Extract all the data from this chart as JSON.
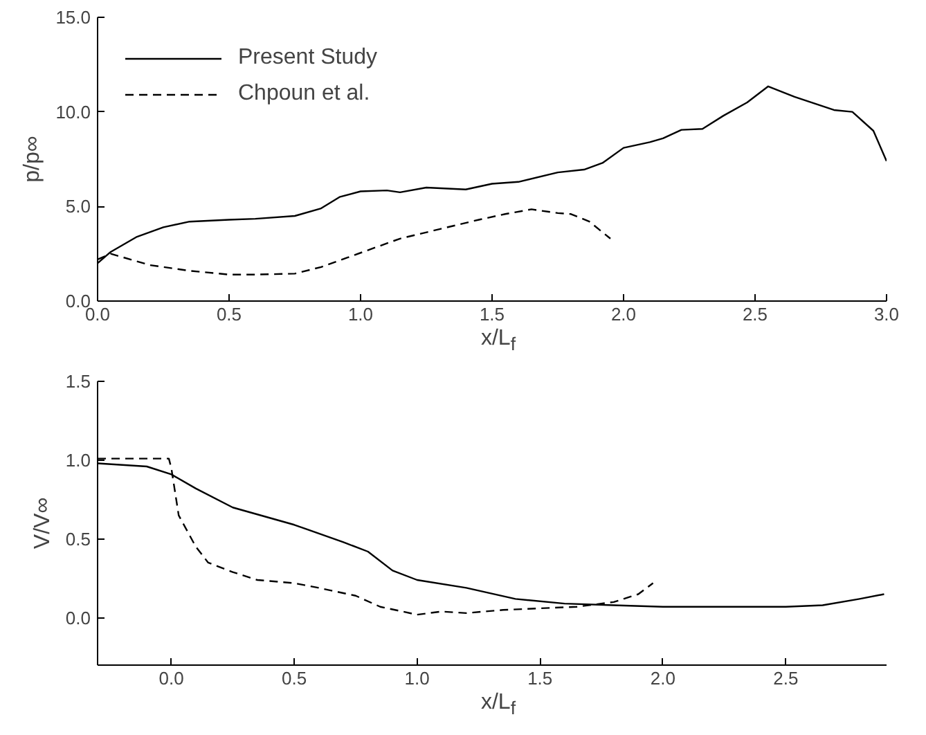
{
  "chart_data": [
    {
      "type": "line",
      "xlabel": "x/L$_{f}$",
      "ylabel": "p/p∞",
      "xlim": [
        0,
        3
      ],
      "ylim": [
        0,
        15
      ],
      "xticks": [
        {
          "value": 0,
          "label": "0.0"
        },
        {
          "value": 0.5,
          "label": "0.5"
        },
        {
          "value": 1,
          "label": "1.0"
        },
        {
          "value": 1.5,
          "label": "1.5"
        },
        {
          "value": 2,
          "label": "2.0"
        },
        {
          "value": 2.5,
          "label": "2.5"
        },
        {
          "value": 3,
          "label": "3.0"
        }
      ],
      "yticks": [
        {
          "value": 0,
          "label": "0.0"
        },
        {
          "value": 5,
          "label": "5.0"
        },
        {
          "value": 10,
          "label": "10.0"
        },
        {
          "value": 15,
          "label": "15.0"
        }
      ],
      "grid": false,
      "legend": "top left",
      "series": [
        {
          "name": "Present Study",
          "color": "#000000",
          "line_style": "solid",
          "x": [
            0,
            0.05,
            0.15,
            0.25,
            0.35,
            0.5,
            0.6,
            0.75,
            0.85,
            0.92,
            1.0,
            1.1,
            1.15,
            1.25,
            1.4,
            1.5,
            1.6,
            1.75,
            1.85,
            1.92,
            2.0,
            2.1,
            2.15,
            2.22,
            2.3,
            2.38,
            2.47,
            2.55,
            2.65,
            2.8,
            2.87,
            2.95,
            3.0
          ],
          "values": [
            2.0,
            2.6,
            3.4,
            3.9,
            4.2,
            4.3,
            4.35,
            4.5,
            4.9,
            5.5,
            5.8,
            5.85,
            5.75,
            6.0,
            5.9,
            6.2,
            6.3,
            6.8,
            6.95,
            7.3,
            8.1,
            8.4,
            8.6,
            9.05,
            9.1,
            9.8,
            10.5,
            11.35,
            10.8,
            10.1,
            10.0,
            9.0,
            7.4
          ]
        },
        {
          "name": "Chpoun et al.",
          "color": "#000000",
          "line_style": "dashed",
          "x": [
            0,
            0.05,
            0.2,
            0.35,
            0.5,
            0.6,
            0.75,
            0.85,
            0.95,
            1.05,
            1.15,
            1.3,
            1.45,
            1.55,
            1.65,
            1.75,
            1.8,
            1.87,
            1.95
          ],
          "values": [
            2.2,
            2.5,
            1.9,
            1.6,
            1.4,
            1.4,
            1.45,
            1.8,
            2.3,
            2.8,
            3.3,
            3.8,
            4.3,
            4.6,
            4.85,
            4.65,
            4.6,
            4.2,
            3.3
          ]
        }
      ]
    },
    {
      "type": "line",
      "xlabel": "x/L$_{f}$",
      "ylabel": "V/V∞",
      "xlim": [
        -0.3,
        2.91
      ],
      "ylim": [
        -0.3,
        1.5
      ],
      "xticks": [
        {
          "value": 0,
          "label": "0.0"
        },
        {
          "value": 0.5,
          "label": "0.5"
        },
        {
          "value": 1,
          "label": "1.0"
        },
        {
          "value": 1.5,
          "label": "1.5"
        },
        {
          "value": 2,
          "label": "2.0"
        },
        {
          "value": 2.5,
          "label": "2.5"
        }
      ],
      "yticks": [
        {
          "value": 0,
          "label": "0.0"
        },
        {
          "value": 0.5,
          "label": "0.5"
        },
        {
          "value": 1,
          "label": "1.0"
        },
        {
          "value": 1.5,
          "label": "1.5"
        }
      ],
      "grid": false,
      "series": [
        {
          "color": "#000000",
          "line_style": "solid",
          "x": [
            -0.3,
            -0.1,
            0.0,
            0.1,
            0.25,
            0.5,
            0.7,
            0.8,
            0.9,
            1.0,
            1.2,
            1.4,
            1.6,
            1.8,
            2.0,
            2.5,
            2.65,
            2.8,
            2.9
          ],
          "values": [
            0.98,
            0.96,
            0.91,
            0.82,
            0.7,
            0.59,
            0.48,
            0.42,
            0.3,
            0.24,
            0.19,
            0.12,
            0.09,
            0.08,
            0.07,
            0.07,
            0.08,
            0.12,
            0.15
          ]
        },
        {
          "color": "#000000",
          "line_style": "dashed",
          "x": [
            -0.3,
            -0.01,
            0.0,
            0.03,
            0.1,
            0.15,
            0.25,
            0.35,
            0.5,
            0.6,
            0.75,
            0.85,
            1.0,
            1.1,
            1.2,
            1.35,
            1.5,
            1.65,
            1.8,
            1.9,
            1.96
          ],
          "values": [
            1.01,
            1.01,
            0.95,
            0.65,
            0.45,
            0.35,
            0.29,
            0.24,
            0.22,
            0.19,
            0.14,
            0.07,
            0.02,
            0.04,
            0.03,
            0.05,
            0.06,
            0.07,
            0.1,
            0.15,
            0.22
          ]
        }
      ]
    }
  ]
}
